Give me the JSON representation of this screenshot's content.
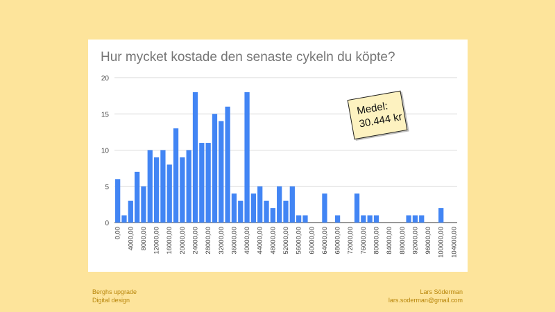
{
  "slide": {
    "footer_left": {
      "line1": "Berghs upgrade",
      "line2": "Digital design"
    },
    "footer_right": {
      "line1": "Lars Söderman",
      "line2": "lars.soderman@gmail.com"
    },
    "note": {
      "line1": "Medel:",
      "line2": "30.444 kr"
    }
  },
  "colors": {
    "bar": "#4285f4",
    "background": "#fde49b",
    "grid": "#d9d9d9"
  },
  "chart_data": {
    "type": "bar",
    "title": "Hur mycket kostade den senaste cykeln du köpte?",
    "xlabel": "",
    "ylabel": "",
    "ylim": [
      0,
      20
    ],
    "yticks": [
      "0",
      "5",
      "10",
      "15",
      "20"
    ],
    "grid": true,
    "categories": [
      "0,00",
      "2000,00",
      "4000,00",
      "6000,00",
      "8000,00",
      "10000,00",
      "12000,00",
      "14000,00",
      "16000,00",
      "18000,00",
      "20000,00",
      "22000,00",
      "24000,00",
      "26000,00",
      "28000,00",
      "30000,00",
      "32000,00",
      "34000,00",
      "36000,00",
      "38000,00",
      "40000,00",
      "42000,00",
      "44000,00",
      "46000,00",
      "48000,00",
      "50000,00",
      "52000,00",
      "54000,00",
      "56000,00",
      "58000,00",
      "60000,00",
      "62000,00",
      "64000,00",
      "66000,00",
      "68000,00",
      "70000,00",
      "72000,00",
      "74000,00",
      "76000,00",
      "78000,00",
      "80000,00",
      "82000,00",
      "84000,00",
      "86000,00",
      "88000,00",
      "90000,00",
      "92000,00",
      "94000,00",
      "96000,00",
      "98000,00",
      "100000,00",
      "102000,00",
      "104000,00"
    ],
    "tick_labels": [
      "0,00",
      "4000,00",
      "8000,00",
      "12000,00",
      "16000,00",
      "20000,00",
      "24000,00",
      "28000,00",
      "32000,00",
      "36000,00",
      "40000,00",
      "44000,00",
      "48000,00",
      "52000,00",
      "56000,00",
      "60000,00",
      "64000,00",
      "68000,00",
      "72000,00",
      "76000,00",
      "80000,00",
      "84000,00",
      "88000,00",
      "92000,00",
      "96000,00",
      "100000,00",
      "104000,00"
    ],
    "values": [
      6,
      1,
      3,
      7,
      5,
      10,
      9,
      10,
      8,
      13,
      9,
      10,
      18,
      11,
      11,
      15,
      14,
      16,
      4,
      3,
      18,
      4,
      5,
      3,
      2,
      5,
      3,
      5,
      1,
      1,
      0,
      0,
      4,
      0,
      1,
      0,
      0,
      4,
      1,
      1,
      1,
      0,
      0,
      0,
      0,
      1,
      1,
      1,
      0,
      0,
      2,
      0,
      0
    ]
  }
}
